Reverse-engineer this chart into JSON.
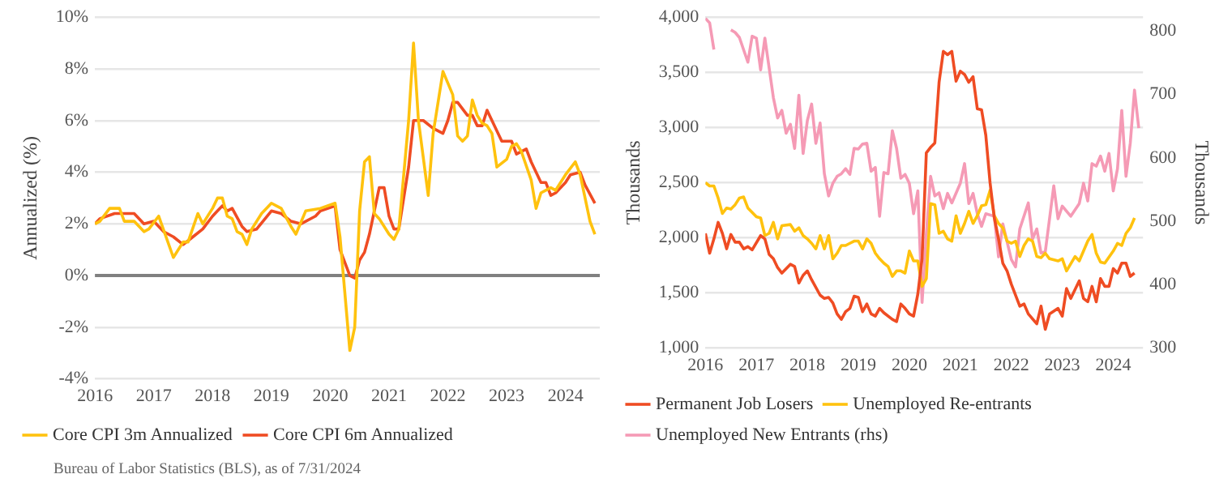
{
  "chart_data": [
    {
      "type": "line",
      "ylabel": "Annualized (%)",
      "xlim": [
        "2016-01",
        "2024-08"
      ],
      "xticks": [
        "2016",
        "2017",
        "2018",
        "2019",
        "2020",
        "2021",
        "2022",
        "2023",
        "2024"
      ],
      "ylim": [
        -4,
        10
      ],
      "yticks": [
        {
          "value": -4,
          "label": "-4%"
        },
        {
          "value": -2,
          "label": "-2%"
        },
        {
          "value": 0,
          "label": "0%"
        },
        {
          "value": 2,
          "label": "2%"
        },
        {
          "value": 4,
          "label": "4%"
        },
        {
          "value": 6,
          "label": "6%"
        },
        {
          "value": 8,
          "label": "8%"
        },
        {
          "value": 10,
          "label": "10%"
        }
      ],
      "grid": "y",
      "legend": "bottom",
      "marker": "none",
      "line_style": "solid",
      "ref_lines": [
        {
          "axis": "y",
          "value": 0,
          "color": "#808080"
        }
      ],
      "annotations": [
        "Bureau of Labor Statistics (BLS), as of 7/31/2024"
      ],
      "series": [
        {
          "name": "Core CPI 3m Annualized",
          "color": "#ffc20e",
          "x": [
            "2016-01",
            "2016-02",
            "2016-04",
            "2016-06",
            "2016-07",
            "2016-09",
            "2016-11",
            "2016-12",
            "2017-02",
            "2017-05",
            "2017-07",
            "2017-08",
            "2017-10",
            "2017-11",
            "2018-01",
            "2018-02",
            "2018-03",
            "2018-04",
            "2018-05",
            "2018-06",
            "2018-07",
            "2018-08",
            "2018-09",
            "2018-11",
            "2019-01",
            "2019-03",
            "2019-05",
            "2019-06",
            "2019-08",
            "2019-11",
            "2020-02",
            "2020-03",
            "2020-05",
            "2020-06",
            "2020-07",
            "2020-08",
            "2020-09",
            "2020-10",
            "2020-11",
            "2021-01",
            "2021-02",
            "2021-03",
            "2021-05",
            "2021-06",
            "2021-07",
            "2021-09",
            "2021-10",
            "2021-12",
            "2022-02",
            "2022-03",
            "2022-04",
            "2022-05",
            "2022-06",
            "2022-07",
            "2022-08",
            "2022-09",
            "2022-10",
            "2022-11",
            "2023-01",
            "2023-02",
            "2023-03",
            "2023-04",
            "2023-06",
            "2023-07",
            "2023-08",
            "2023-10",
            "2023-11",
            "2024-01",
            "2024-03",
            "2024-04",
            "2024-06",
            "2024-07"
          ],
          "values": [
            2.0,
            2.1,
            2.6,
            2.6,
            2.1,
            2.1,
            1.7,
            1.8,
            2.3,
            0.7,
            1.3,
            1.3,
            2.4,
            2.0,
            2.6,
            3.0,
            3.0,
            2.3,
            2.2,
            1.7,
            1.6,
            1.2,
            1.8,
            2.4,
            2.8,
            2.6,
            1.9,
            1.6,
            2.5,
            2.6,
            2.8,
            1.5,
            -2.9,
            -2.0,
            2.5,
            4.4,
            4.6,
            2.4,
            2.2,
            1.6,
            1.4,
            1.8,
            6.0,
            9.0,
            6.0,
            3.1,
            5.5,
            7.9,
            7.0,
            5.4,
            5.2,
            5.4,
            6.8,
            6.2,
            5.9,
            5.8,
            5.5,
            4.2,
            4.5,
            5.0,
            5.1,
            4.8,
            3.7,
            2.6,
            3.2,
            3.4,
            3.3,
            3.9,
            4.4,
            3.9,
            2.1,
            1.6
          ]
        },
        {
          "name": "Core CPI 6m Annualized",
          "color": "#ef4c23",
          "x": [
            "2016-01",
            "2016-02",
            "2016-05",
            "2016-09",
            "2016-11",
            "2017-01",
            "2017-03",
            "2017-05",
            "2017-07",
            "2017-09",
            "2017-11",
            "2018-01",
            "2018-02",
            "2018-03",
            "2018-04",
            "2018-05",
            "2018-07",
            "2018-08",
            "2018-10",
            "2019-01",
            "2019-03",
            "2019-05",
            "2019-07",
            "2019-10",
            "2019-11",
            "2020-02",
            "2020-03",
            "2020-05",
            "2020-06",
            "2020-07",
            "2020-08",
            "2020-09",
            "2020-11",
            "2020-12",
            "2021-01",
            "2021-02",
            "2021-03",
            "2021-05",
            "2021-06",
            "2021-08",
            "2021-10",
            "2021-12",
            "2022-01",
            "2022-02",
            "2022-03",
            "2022-05",
            "2022-06",
            "2022-07",
            "2022-08",
            "2022-09",
            "2022-10",
            "2022-12",
            "2023-02",
            "2023-03",
            "2023-05",
            "2023-06",
            "2023-08",
            "2023-09",
            "2023-10",
            "2023-11",
            "2024-01",
            "2024-02",
            "2024-04",
            "2024-05",
            "2024-07"
          ],
          "values": [
            2.0,
            2.2,
            2.4,
            2.4,
            2.0,
            2.1,
            1.7,
            1.5,
            1.2,
            1.5,
            1.8,
            2.3,
            2.5,
            2.7,
            2.5,
            2.6,
            1.9,
            1.7,
            1.8,
            2.5,
            2.4,
            2.1,
            2.0,
            2.3,
            2.5,
            2.7,
            1.0,
            0.0,
            -0.1,
            0.6,
            0.9,
            1.6,
            3.4,
            3.4,
            2.3,
            1.8,
            1.8,
            4.2,
            6.0,
            6.0,
            5.7,
            5.5,
            6.0,
            6.7,
            6.7,
            6.2,
            6.2,
            5.8,
            5.8,
            6.4,
            6.0,
            5.2,
            5.2,
            4.7,
            4.9,
            4.4,
            3.6,
            3.6,
            3.1,
            3.2,
            3.6,
            3.9,
            4.0,
            3.5,
            2.8
          ]
        }
      ]
    },
    {
      "type": "line",
      "ylabel": "Thousands",
      "y2label": "Thousands",
      "xlim": [
        "2016-01",
        "2024-08"
      ],
      "xticks": [
        "2016",
        "2017",
        "2018",
        "2019",
        "2020",
        "2021",
        "2022",
        "2023",
        "2024"
      ],
      "ylim": [
        1000,
        4000
      ],
      "yticks": [
        {
          "value": 1000,
          "label": "1,000"
        },
        {
          "value": 1500,
          "label": "1,500"
        },
        {
          "value": 2000,
          "label": "2,000"
        },
        {
          "value": 2500,
          "label": "2,500"
        },
        {
          "value": 3000,
          "label": "3,000"
        },
        {
          "value": 3500,
          "label": "3,500"
        },
        {
          "value": 4000,
          "label": "4,000"
        }
      ],
      "y2lim": [
        300,
        822
      ],
      "y2ticks": [
        300,
        400,
        500,
        600,
        700,
        800
      ],
      "grid": "y",
      "legend": "bottom",
      "marker": "none",
      "line_style": "solid",
      "series": [
        {
          "name": "Permanent Job Losers",
          "color": "#ef4c23",
          "x": [
            "2016-01",
            "2016-02",
            "2016-03",
            "2016-04",
            "2016-05",
            "2016-06",
            "2016-07",
            "2016-08",
            "2016-09",
            "2016-10",
            "2016-11",
            "2016-12",
            "2017-02",
            "2017-03",
            "2017-04",
            "2017-05",
            "2017-06",
            "2017-07",
            "2017-09",
            "2017-10",
            "2017-11",
            "2017-12",
            "2018-01",
            "2018-02",
            "2018-04",
            "2018-05",
            "2018-06",
            "2018-07",
            "2018-08",
            "2018-09",
            "2018-10",
            "2018-11",
            "2018-12",
            "2019-01",
            "2019-02",
            "2019-03",
            "2019-04",
            "2019-05",
            "2019-06",
            "2019-07",
            "2019-09",
            "2019-10",
            "2019-11",
            "2019-12",
            "2020-01",
            "2020-02",
            "2020-03",
            "2020-04",
            "2020-05",
            "2020-06",
            "2020-07",
            "2020-08",
            "2020-09",
            "2020-10",
            "2020-11",
            "2020-12",
            "2021-01",
            "2021-02",
            "2021-03",
            "2021-04",
            "2021-05",
            "2021-06",
            "2021-07",
            "2021-08",
            "2021-09",
            "2021-10",
            "2021-11",
            "2021-12",
            "2022-01",
            "2022-03",
            "2022-04",
            "2022-05",
            "2022-07",
            "2022-08",
            "2022-09",
            "2022-10",
            "2022-12",
            "2023-01",
            "2023-02",
            "2023-03",
            "2023-05",
            "2023-06",
            "2023-07",
            "2023-08",
            "2023-09",
            "2023-10",
            "2023-11",
            "2023-12",
            "2024-01",
            "2024-02",
            "2024-03",
            "2024-04",
            "2024-05",
            "2024-06"
          ],
          "values": [
            2040,
            1860,
            1990,
            2140,
            2040,
            1900,
            2030,
            1960,
            1960,
            1900,
            1920,
            1890,
            2020,
            1990,
            1850,
            1810,
            1730,
            1680,
            1760,
            1740,
            1590,
            1660,
            1700,
            1620,
            1480,
            1450,
            1460,
            1410,
            1310,
            1260,
            1330,
            1360,
            1470,
            1460,
            1330,
            1400,
            1310,
            1290,
            1360,
            1320,
            1260,
            1240,
            1400,
            1360,
            1310,
            1290,
            1490,
            1810,
            2770,
            2820,
            2860,
            3410,
            3690,
            3660,
            3690,
            3420,
            3510,
            3480,
            3410,
            3460,
            3170,
            3160,
            2930,
            2500,
            2180,
            1990,
            1770,
            1700,
            1580,
            1380,
            1400,
            1310,
            1220,
            1380,
            1170,
            1310,
            1360,
            1290,
            1540,
            1450,
            1610,
            1450,
            1420,
            1560,
            1420,
            1630,
            1560,
            1560,
            1720,
            1680,
            1770,
            1770,
            1650,
            1680
          ]
        },
        {
          "name": "Unemployed Re-entrants",
          "color": "#ffc20e",
          "x": [
            "2016-01",
            "2016-02",
            "2016-03",
            "2016-04",
            "2016-05",
            "2016-06",
            "2016-07",
            "2016-08",
            "2016-09",
            "2016-10",
            "2016-11",
            "2017-01",
            "2017-02",
            "2017-03",
            "2017-04",
            "2017-05",
            "2017-06",
            "2017-07",
            "2017-09",
            "2017-10",
            "2017-11",
            "2017-12",
            "2018-01",
            "2018-02",
            "2018-03",
            "2018-04",
            "2018-05",
            "2018-06",
            "2018-07",
            "2018-08",
            "2018-09",
            "2018-10",
            "2018-11",
            "2018-12",
            "2019-01",
            "2019-02",
            "2019-03",
            "2019-04",
            "2019-05",
            "2019-06",
            "2019-07",
            "2019-08",
            "2019-09",
            "2019-10",
            "2019-11",
            "2019-12",
            "2020-01",
            "2020-02",
            "2020-03",
            "2020-04",
            "2020-05",
            "2020-06",
            "2020-07",
            "2020-08",
            "2020-09",
            "2020-10",
            "2020-11",
            "2020-12",
            "2021-01",
            "2021-02",
            "2021-03",
            "2021-04",
            "2021-05",
            "2021-06",
            "2021-07",
            "2021-08",
            "2021-09",
            "2021-10",
            "2021-11",
            "2021-12",
            "2022-01",
            "2022-02",
            "2022-03",
            "2022-04",
            "2022-05",
            "2022-06",
            "2022-07",
            "2022-08",
            "2022-09",
            "2022-10",
            "2022-12",
            "2023-01",
            "2023-02",
            "2023-04",
            "2023-05",
            "2023-06",
            "2023-07",
            "2023-08",
            "2023-09",
            "2023-10",
            "2023-11",
            "2024-01",
            "2024-02",
            "2024-03",
            "2024-04",
            "2024-05",
            "2024-06"
          ],
          "values": [
            2500,
            2470,
            2470,
            2360,
            2220,
            2270,
            2260,
            2300,
            2360,
            2370,
            2270,
            2190,
            2180,
            2020,
            2040,
            2140,
            1990,
            2110,
            2120,
            2060,
            2090,
            2020,
            1990,
            1950,
            1900,
            2020,
            1900,
            2020,
            1810,
            1860,
            1930,
            1930,
            1950,
            1970,
            1970,
            1900,
            1990,
            1950,
            1860,
            1810,
            1770,
            1740,
            1650,
            1700,
            1700,
            1680,
            1880,
            1790,
            1790,
            1560,
            1630,
            2310,
            2300,
            2040,
            2060,
            1990,
            1970,
            2200,
            2040,
            2130,
            2240,
            2130,
            2200,
            2290,
            2300,
            2430,
            2200,
            2130,
            2090,
            1970,
            1950,
            1970,
            1830,
            1930,
            1990,
            1970,
            1830,
            1820,
            1860,
            1810,
            1790,
            1810,
            1700,
            1830,
            1790,
            1880,
            1970,
            2030,
            1860,
            1780,
            1770,
            1880,
            1950,
            1930,
            2040,
            2090,
            2180
          ]
        },
        {
          "name": "Unemployed New Entrants (rhs)",
          "color": "#f59ab5",
          "axis": "y2",
          "x": [
            "2016-01",
            "2016-02",
            "2016-03",
            "2016-04",
            "2016-05",
            "2016-06",
            "2016-07",
            "2016-08",
            "2016-09",
            "2016-11",
            "2016-12",
            "2017-01",
            "2017-02",
            "2017-03",
            "2017-05",
            "2017-06",
            "2017-07",
            "2017-08",
            "2017-09",
            "2017-10",
            "2017-11",
            "2017-12",
            "2018-01",
            "2018-02",
            "2018-03",
            "2018-04",
            "2018-05",
            "2018-06",
            "2018-07",
            "2018-08",
            "2018-09",
            "2018-10",
            "2018-11",
            "2018-12",
            "2019-01",
            "2019-02",
            "2019-03",
            "2019-04",
            "2019-05",
            "2019-06",
            "2019-07",
            "2019-08",
            "2019-09",
            "2019-10",
            "2019-11",
            "2019-12",
            "2020-01",
            "2020-02",
            "2020-03",
            "2020-04",
            "2020-05",
            "2020-06",
            "2020-07",
            "2020-08",
            "2020-09",
            "2020-10",
            "2020-11",
            "2021-01",
            "2021-02",
            "2021-03",
            "2021-04",
            "2021-05",
            "2021-06",
            "2021-07",
            "2021-09",
            "2021-10",
            "2021-11",
            "2022-01",
            "2022-02",
            "2022-03",
            "2022-05",
            "2022-06",
            "2022-07",
            "2022-08",
            "2022-09",
            "2022-11",
            "2022-12",
            "2023-01",
            "2023-03",
            "2023-05",
            "2023-06",
            "2023-07",
            "2023-08",
            "2023-09",
            "2023-10",
            "2023-11",
            "2023-12",
            "2024-01",
            "2024-02",
            "2024-03",
            "2024-04",
            "2024-05",
            "2024-06",
            "2024-07"
          ],
          "values": [
            820,
            813,
            771,
            null,
            null,
            null,
            802,
            798,
            790,
            751,
            792,
            789,
            739,
            789,
            695,
            663,
            675,
            639,
            653,
            615,
            699,
            607,
            659,
            685,
            623,
            655,
            575,
            540,
            560,
            571,
            575,
            583,
            574,
            615,
            614,
            622,
            623,
            579,
            585,
            508,
            577,
            575,
            643,
            615,
            568,
            574,
            560,
            512,
            548,
            372,
            480,
            571,
            540,
            545,
            520,
            544,
            529,
            560,
            591,
            528,
            544,
            512,
            492,
            512,
            508,
            444,
            496,
            440,
            428,
            488,
            529,
            472,
            488,
            450,
            452,
            556,
            504,
            524,
            508,
            528,
            560,
            532,
            591,
            587,
            603,
            579,
            607,
            548,
            583,
            675,
            571,
            623,
            707,
            647
          ]
        }
      ]
    }
  ]
}
